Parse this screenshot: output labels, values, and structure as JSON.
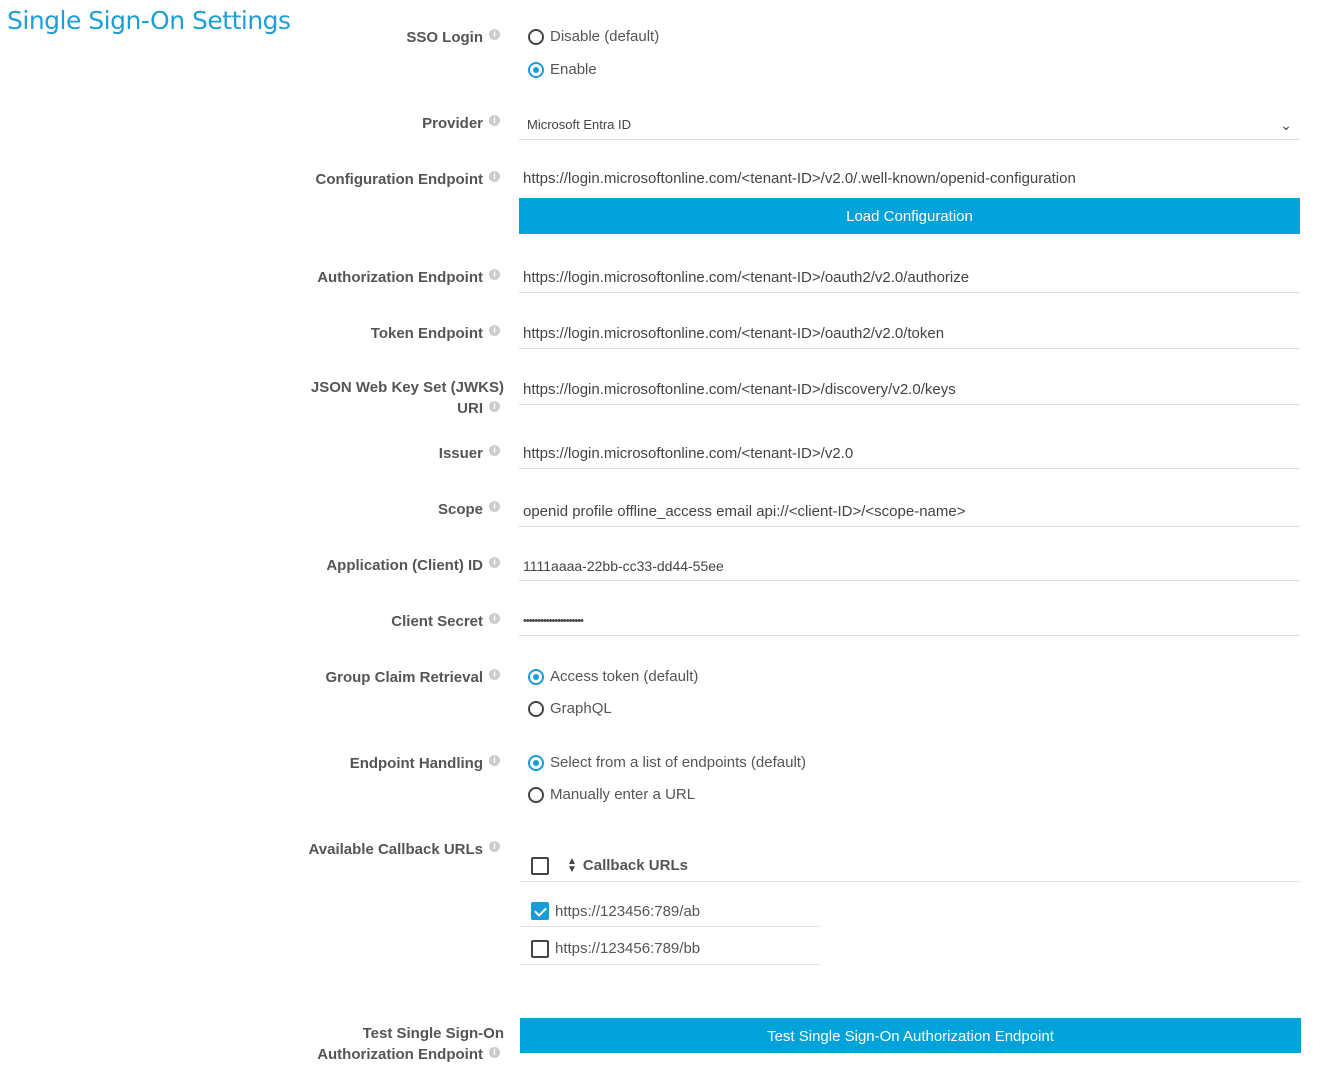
{
  "page_title": "Single Sign-On Settings",
  "colors": {
    "accent": "#1a9bd7",
    "button": "#00a3d9"
  },
  "sso_login": {
    "label": "SSO Login",
    "options": [
      "Disable (default)",
      "Enable"
    ],
    "selected": "Enable"
  },
  "provider": {
    "label": "Provider",
    "value": "Microsoft Entra ID"
  },
  "config_endpoint": {
    "label": "Configuration Endpoint",
    "value": "https://login.microsoftonline.com/<tenant-ID>/v2.0/.well-known/openid-configuration",
    "button": "Load Configuration"
  },
  "auth_endpoint": {
    "label": "Authorization Endpoint",
    "value": "https://login.microsoftonline.com/<tenant-ID>/oauth2/v2.0/authorize"
  },
  "token_endpoint": {
    "label": "Token Endpoint",
    "value": "https://login.microsoftonline.com/<tenant-ID>/oauth2/v2.0/token"
  },
  "jwks": {
    "label_line1": "JSON Web Key Set (JWKS)",
    "label_line2": "URI",
    "value": "https://login.microsoftonline.com/<tenant-ID>/discovery/v2.0/keys"
  },
  "issuer": {
    "label": "Issuer",
    "value": "https://login.microsoftonline.com/<tenant-ID>/v2.0"
  },
  "scope": {
    "label": "Scope",
    "value": "openid profile offline_access email api://<client-ID>/<scope-name>"
  },
  "client_id": {
    "label": "Application (Client) ID",
    "value": "1111aaaa-22bb-cc33-dd44-55ee"
  },
  "client_secret": {
    "label": "Client Secret",
    "value": "•••••••••••••••••••••"
  },
  "group_claim": {
    "label": "Group Claim Retrieval",
    "options": [
      "Access token (default)",
      "GraphQL"
    ],
    "selected": "Access token (default)"
  },
  "endpoint_handling": {
    "label": "Endpoint Handling",
    "options": [
      "Select from a list of endpoints (default)",
      "Manually enter a URL"
    ],
    "selected": "Select from a list of endpoints (default)"
  },
  "callbacks": {
    "label": "Available Callback URLs",
    "header": "Callback URLs",
    "rows": [
      {
        "url": "https://123456:789/ab",
        "checked": true
      },
      {
        "url": "https://123456:789/bb",
        "checked": false
      }
    ]
  },
  "test": {
    "label_line1": "Test Single Sign-On",
    "label_line2": "Authorization Endpoint",
    "button": "Test Single Sign-On Authorization Endpoint"
  }
}
